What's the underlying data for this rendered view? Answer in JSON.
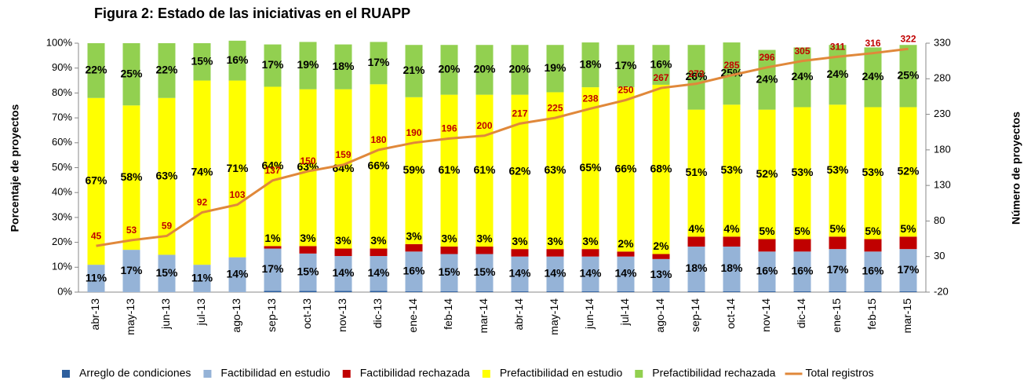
{
  "chart_data": {
    "type": "bar",
    "stacked": true,
    "title": "Figura 2: Estado de las iniciativas en el RUAPP",
    "ylabel": "Porcentaje de proyectos",
    "y2label": "Número de proyectos",
    "categories": [
      "abr-13",
      "may-13",
      "jun-13",
      "jul-13",
      "ago-13",
      "sep-13",
      "oct-13",
      "nov-13",
      "dic-13",
      "ene-14",
      "feb-14",
      "mar-14",
      "abr-14",
      "may-14",
      "jun-14",
      "jul-14",
      "ago-14",
      "sep-14",
      "oct-14",
      "nov-14",
      "dic-14",
      "ene-15",
      "feb-15",
      "mar-15"
    ],
    "ylim": [
      0,
      100
    ],
    "yticks": [
      {
        "value": 0,
        "label": "0%"
      },
      {
        "value": 10,
        "label": "10%"
      },
      {
        "value": 20,
        "label": "20%"
      },
      {
        "value": 30,
        "label": "30%"
      },
      {
        "value": 40,
        "label": "40%"
      },
      {
        "value": 50,
        "label": "50%"
      },
      {
        "value": 60,
        "label": "60%"
      },
      {
        "value": 70,
        "label": "70%"
      },
      {
        "value": 80,
        "label": "80%"
      },
      {
        "value": 90,
        "label": "90%"
      },
      {
        "value": 100,
        "label": "100%"
      }
    ],
    "y2lim": [
      -20,
      330
    ],
    "y2ticks": [
      -20,
      30,
      80,
      130,
      180,
      230,
      280,
      330
    ],
    "legend": "bottom",
    "series": [
      {
        "name": "Arreglo de condiciones",
        "color": "#2e5f9e",
        "values": [
          0,
          0,
          0,
          0,
          0,
          0.5,
          0.5,
          0.5,
          0.5,
          0.3,
          0.3,
          0.3,
          0.3,
          0.3,
          0.3,
          0.3,
          0.3,
          0.3,
          0.3,
          0.3,
          0.3,
          0.3,
          0.3,
          0.3
        ]
      },
      {
        "name": "Factibilidad en estudio",
        "color": "#95b3d7",
        "values": [
          11,
          17,
          15,
          11,
          14,
          17,
          15,
          14,
          14,
          16,
          15,
          15,
          14,
          14,
          14,
          14,
          13,
          18,
          18,
          16,
          16,
          17,
          16,
          17
        ],
        "value_labels": [
          "11%",
          "17%",
          "15%",
          "11%",
          "14%",
          "17%",
          "15%",
          "14%",
          "14%",
          "16%",
          "15%",
          "15%",
          "14%",
          "14%",
          "14%",
          "14%",
          "13%",
          "18%",
          "18%",
          "16%",
          "16%",
          "17%",
          "16%",
          "17%"
        ]
      },
      {
        "name": "Factibilidad rechazada",
        "color": "#c00000",
        "values": [
          0,
          0,
          0,
          0,
          0,
          1,
          3,
          3,
          3,
          3,
          3,
          3,
          3,
          3,
          3,
          2,
          2,
          4,
          4,
          5,
          5,
          5,
          5,
          5
        ],
        "value_labels": [
          null,
          null,
          null,
          null,
          null,
          "1%",
          "3%",
          "3%",
          "3%",
          "3%",
          "3%",
          "3%",
          "3%",
          "3%",
          "3%",
          "2%",
          "2%",
          "4%",
          "4%",
          "5%",
          "5%",
          "5%",
          "5%",
          "5%"
        ]
      },
      {
        "name": "Prefactibilidad en estudio",
        "color": "#ffff00",
        "values": [
          67,
          58,
          63,
          74,
          71,
          64,
          63,
          64,
          66,
          59,
          61,
          61,
          62,
          63,
          65,
          66,
          68,
          51,
          53,
          52,
          53,
          53,
          53,
          52
        ],
        "value_labels": [
          "67%",
          "58%",
          "63%",
          "74%",
          "71%",
          "64%",
          "63%",
          "64%",
          "66%",
          "59%",
          "61%",
          "61%",
          "62%",
          "63%",
          "65%",
          "66%",
          "68%",
          "51%",
          "53%",
          "52%",
          "53%",
          "53%",
          "53%",
          "52%"
        ]
      },
      {
        "name": "Prefactibilidad rechazada",
        "color": "#92d050",
        "values": [
          22,
          25,
          22,
          15,
          16,
          17,
          19,
          18,
          17,
          21,
          20,
          20,
          20,
          19,
          18,
          17,
          16,
          26,
          25,
          24,
          24,
          24,
          24,
          25
        ],
        "value_labels": [
          "22%",
          "25%",
          "22%",
          "15%",
          "16%",
          "17%",
          "19%",
          "18%",
          "17%",
          "21%",
          "20%",
          "20%",
          "20%",
          "19%",
          "18%",
          "17%",
          "16%",
          "26%",
          "25%",
          "24%",
          "24%",
          "24%",
          "24%",
          "25%"
        ]
      },
      {
        "name": "Total registros",
        "type": "line",
        "axis": "y2",
        "color": "#e0883a",
        "label_color": "#c00000",
        "values": [
          45,
          53,
          59,
          92,
          103,
          137,
          150,
          159,
          180,
          190,
          196,
          200,
          217,
          225,
          238,
          250,
          267,
          273,
          285,
          296,
          305,
          311,
          316,
          322
        ]
      }
    ]
  }
}
